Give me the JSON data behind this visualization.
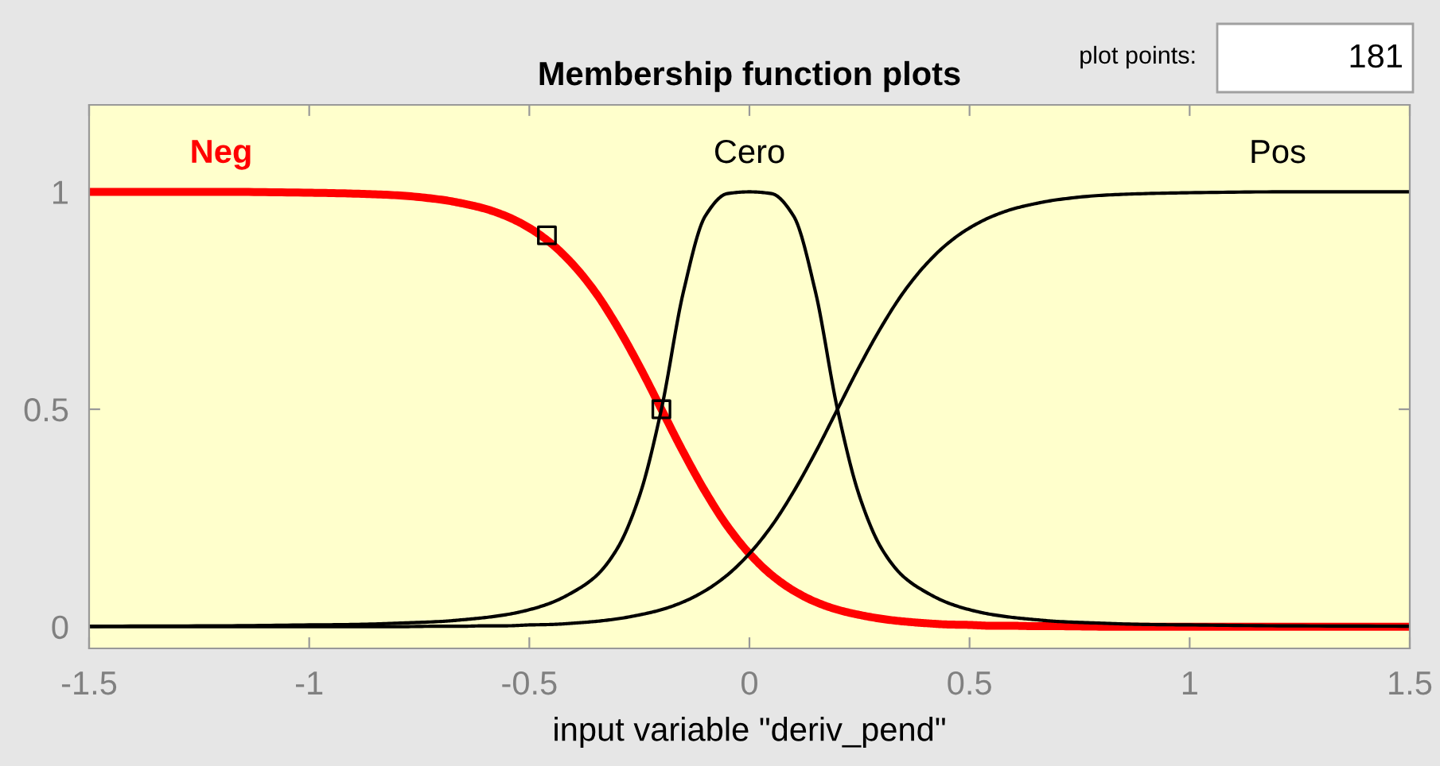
{
  "chart_data": {
    "type": "line",
    "title": "Membership function plots",
    "xlabel": "input variable \"deriv_pend\"",
    "x": [
      -1.5,
      -1.2,
      -1.0,
      -0.9,
      -0.8,
      -0.7,
      -0.65,
      -0.6,
      -0.55,
      -0.5,
      -0.45,
      -0.4,
      -0.35,
      -0.3,
      -0.25,
      -0.2,
      -0.15,
      -0.1,
      -0.05,
      0,
      0.05,
      0.1,
      0.15,
      0.2,
      0.25,
      0.3,
      0.35,
      0.4,
      0.45,
      0.5,
      0.55,
      0.6,
      0.65,
      0.7,
      0.8,
      0.9,
      1.0,
      1.2,
      1.5
    ],
    "series": [
      {
        "name": "Neg",
        "color": "#ff0000",
        "values": [
          1,
          1,
          0.998,
          0.996,
          0.992,
          0.982,
          0.973,
          0.961,
          0.943,
          0.917,
          0.881,
          0.832,
          0.769,
          0.69,
          0.599,
          0.5,
          0.401,
          0.31,
          0.231,
          0.168,
          0.119,
          0.083,
          0.057,
          0.039,
          0.027,
          0.018,
          0.012,
          0.008,
          0.005,
          0.004,
          0.002,
          0.002,
          0.001,
          0.001,
          0,
          0,
          0,
          0,
          0
        ]
      },
      {
        "name": "Cero",
        "color": "#000000",
        "values": [
          0.001,
          0.002,
          0.004,
          0.005,
          0.008,
          0.012,
          0.016,
          0.021,
          0.028,
          0.039,
          0.055,
          0.08,
          0.115,
          0.18,
          0.3,
          0.5,
          0.77,
          0.945,
          0.996,
          1,
          0.996,
          0.945,
          0.77,
          0.5,
          0.3,
          0.18,
          0.115,
          0.08,
          0.055,
          0.039,
          0.028,
          0.021,
          0.016,
          0.012,
          0.008,
          0.005,
          0.004,
          0.002,
          0.001
        ]
      },
      {
        "name": "Pos",
        "color": "#000000",
        "values": [
          0,
          0,
          0,
          0,
          0,
          0.001,
          0.001,
          0.002,
          0.002,
          0.004,
          0.005,
          0.008,
          0.012,
          0.018,
          0.027,
          0.039,
          0.057,
          0.083,
          0.119,
          0.168,
          0.231,
          0.31,
          0.401,
          0.5,
          0.599,
          0.69,
          0.769,
          0.832,
          0.881,
          0.917,
          0.943,
          0.961,
          0.973,
          0.982,
          0.992,
          0.996,
          0.998,
          1,
          1
        ]
      },
      {
        "type": "scatter",
        "marker": "square",
        "color": "#000000",
        "x": [
          -0.46,
          -0.2
        ],
        "values": [
          0.9,
          0.5
        ]
      }
    ],
    "xlim": [
      -1.5,
      1.5
    ],
    "ylim": [
      -0.05,
      1.2
    ],
    "xticks": [
      -1.5,
      -1,
      -0.5,
      0,
      0.5,
      1,
      1.5
    ],
    "yticks": [
      0,
      0.5,
      1
    ],
    "grid": false,
    "legend": false,
    "annotations": [
      "plot points:",
      "181"
    ]
  }
}
